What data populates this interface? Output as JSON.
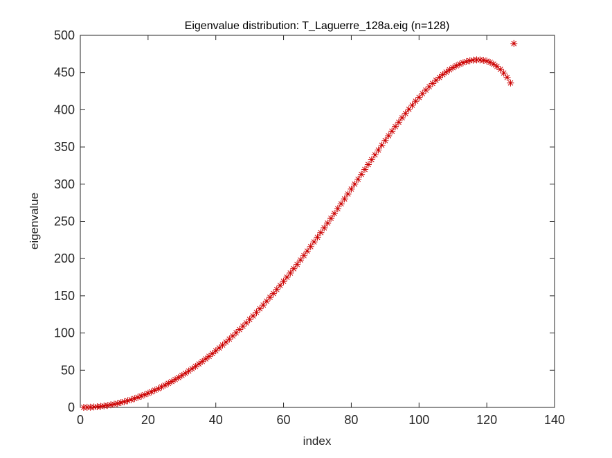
{
  "chart_data": {
    "type": "scatter",
    "title": "Eigenvalue distribution: T_Laguerre_128a.eig (n=128)",
    "xlabel": "index",
    "ylabel": "eigenvalue",
    "xlim": [
      0,
      140
    ],
    "ylim": [
      0,
      500
    ],
    "xticks": [
      0,
      20,
      40,
      60,
      80,
      100,
      120,
      140
    ],
    "yticks": [
      0,
      50,
      100,
      150,
      200,
      250,
      300,
      350,
      400,
      450,
      500
    ],
    "grid": false,
    "marker": "asterisk",
    "marker_color": "#cc0000",
    "series": [
      {
        "name": "",
        "x": [
          1,
          2,
          3,
          4,
          5,
          6,
          7,
          8,
          9,
          10,
          11,
          12,
          13,
          14,
          15,
          16,
          17,
          18,
          19,
          20,
          21,
          22,
          23,
          24,
          25,
          26,
          27,
          28,
          29,
          30,
          31,
          32,
          33,
          34,
          35,
          36,
          37,
          38,
          39,
          40,
          41,
          42,
          43,
          44,
          45,
          46,
          47,
          48,
          49,
          50,
          51,
          52,
          53,
          54,
          55,
          56,
          57,
          58,
          59,
          60,
          61,
          62,
          63,
          64,
          65,
          66,
          67,
          68,
          69,
          70,
          71,
          72,
          73,
          74,
          75,
          76,
          77,
          78,
          79,
          80,
          81,
          82,
          83,
          84,
          85,
          86,
          87,
          88,
          89,
          90,
          91,
          92,
          93,
          94,
          95,
          96,
          97,
          98,
          99,
          100,
          101,
          102,
          103,
          104,
          105,
          106,
          107,
          108,
          109,
          110,
          111,
          112,
          113,
          114,
          115,
          116,
          117,
          118,
          119,
          120,
          121,
          122,
          123,
          124,
          125,
          126,
          127,
          128
        ],
        "y": [
          0.01,
          0.08,
          0.26,
          0.53,
          0.91,
          1.39,
          1.98,
          2.67,
          3.46,
          4.35,
          5.35,
          6.46,
          7.67,
          8.99,
          10.4,
          11.9,
          13.6,
          15.3,
          17.1,
          19.0,
          21.0,
          23.1,
          25.3,
          27.5,
          29.9,
          32.3,
          34.8,
          37.5,
          40.2,
          43.0,
          45.9,
          48.9,
          52.0,
          55.1,
          58.4,
          61.7,
          65.2,
          68.7,
          72.4,
          76.1,
          79.9,
          83.8,
          87.8,
          91.8,
          96.0,
          100.3,
          104.6,
          109.1,
          113.6,
          118.2,
          122.9,
          127.7,
          132.6,
          137.6,
          142.7,
          147.9,
          153.1,
          158.5,
          163.9,
          169.4,
          175.0,
          180.6,
          186.4,
          192.2,
          198.1,
          204.1,
          210.1,
          216.2,
          222.4,
          228.7,
          234.9,
          241.3,
          247.7,
          254.1,
          260.6,
          267.1,
          273.6,
          280.2,
          286.8,
          293.4,
          300.0,
          306.6,
          313.2,
          319.8,
          326.4,
          332.9,
          339.4,
          345.9,
          352.3,
          358.7,
          365.0,
          371.2,
          377.3,
          383.3,
          389.2,
          395.0,
          400.6,
          406.1,
          411.4,
          416.6,
          421.6,
          426.4,
          431.0,
          435.4,
          439.6,
          443.5,
          447.2,
          450.6,
          453.7,
          456.6,
          459.1,
          461.3,
          463.2,
          464.7,
          465.9,
          466.7,
          467.1,
          467.0,
          466.5,
          465.4,
          463.7,
          461.3,
          458.2,
          454.3,
          449.4,
          443.4,
          436.0,
          489.0
        ]
      }
    ]
  }
}
